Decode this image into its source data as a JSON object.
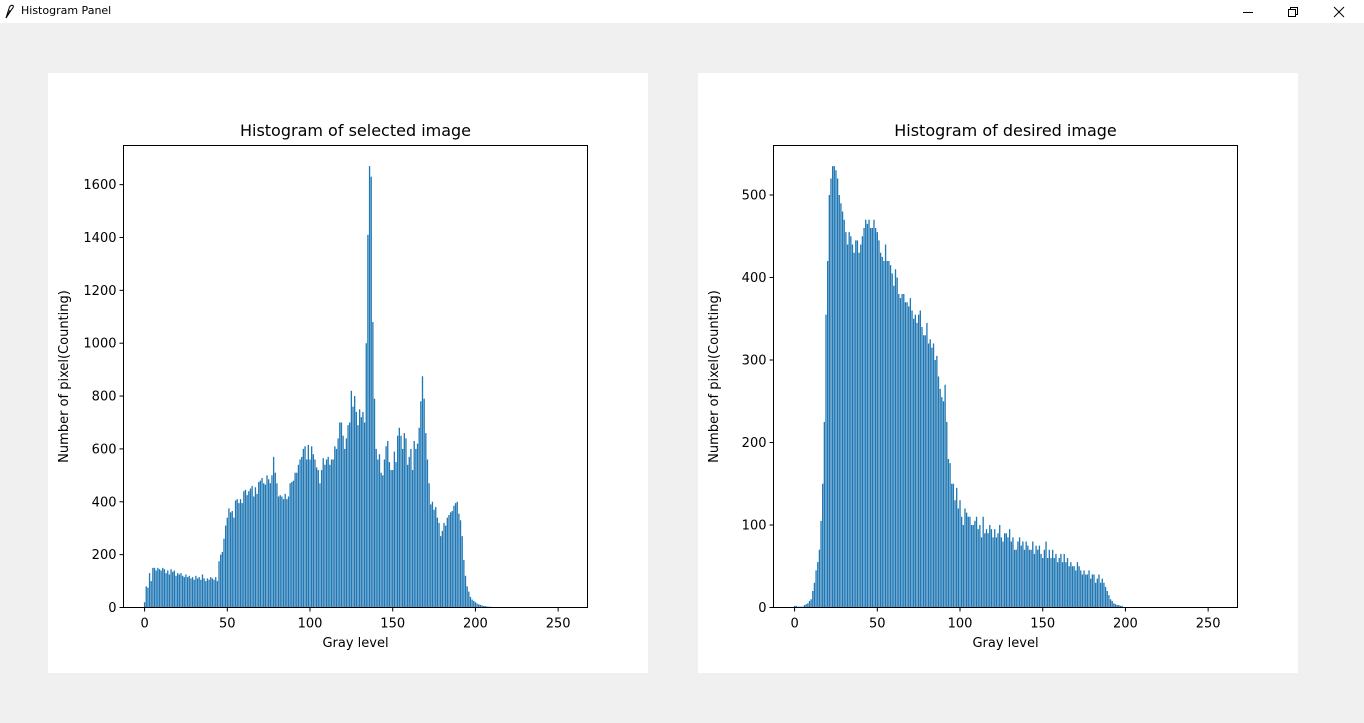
{
  "window": {
    "title": "Histogram Panel",
    "app_icon": "feather-icon",
    "minimize_icon": "minimize-icon",
    "maximize_icon": "restore-icon",
    "close_icon": "close-icon"
  },
  "chart_data": [
    {
      "type": "bar",
      "title": "Histogram of selected image",
      "xlabel": "Gray level",
      "ylabel": "Number of pixel(Counting)",
      "xlim": [
        -12.75,
        267.75
      ],
      "ylim": [
        0,
        1748
      ],
      "xticks": [
        0,
        50,
        100,
        150,
        200,
        250
      ],
      "yticks": [
        0,
        200,
        400,
        600,
        800,
        1000,
        1200,
        1400,
        1600
      ],
      "color": "#1f77b4",
      "x_start": 0,
      "values": [
        20,
        80,
        75,
        130,
        100,
        150,
        150,
        140,
        150,
        145,
        140,
        150,
        145,
        130,
        140,
        125,
        145,
        135,
        140,
        120,
        130,
        125,
        130,
        120,
        115,
        125,
        115,
        120,
        110,
        115,
        105,
        120,
        110,
        115,
        105,
        125,
        110,
        100,
        110,
        105,
        115,
        110,
        105,
        115,
        100,
        175,
        200,
        210,
        260,
        310,
        340,
        375,
        360,
        365,
        340,
        405,
        410,
        395,
        410,
        395,
        440,
        445,
        425,
        440,
        450,
        460,
        420,
        455,
        430,
        475,
        480,
        490,
        470,
        465,
        500,
        485,
        470,
        500,
        570,
        510,
        470,
        420,
        425,
        420,
        410,
        430,
        410,
        420,
        470,
        475,
        480,
        510,
        510,
        540,
        560,
        570,
        600,
        610,
        560,
        615,
        560,
        610,
        580,
        560,
        530,
        520,
        470,
        520,
        565,
        540,
        560,
        570,
        540,
        560,
        560,
        610,
        600,
        640,
        700,
        700,
        650,
        600,
        640,
        690,
        700,
        820,
        760,
        800,
        740,
        690,
        750,
        720,
        740,
        700,
        1000,
        1410,
        1670,
        1630,
        1080,
        790,
        600,
        560,
        580,
        510,
        500,
        560,
        610,
        630,
        550,
        520,
        520,
        590,
        550,
        650,
        680,
        650,
        600,
        660,
        640,
        540,
        570,
        600,
        520,
        630,
        600,
        620,
        680,
        780,
        875,
        790,
        660,
        560,
        470,
        390,
        400,
        370,
        380,
        340,
        320,
        270,
        290,
        320,
        310,
        340,
        350,
        360,
        365,
        385,
        395,
        400,
        355,
        330,
        270,
        180,
        120,
        80,
        60,
        40,
        30,
        25,
        20,
        15,
        12,
        10,
        8,
        6,
        5,
        4,
        3,
        3,
        2,
        2,
        1,
        1,
        1
      ]
    },
    {
      "type": "bar",
      "title": "Histogram of desired image",
      "xlabel": "Gray level",
      "ylabel": "Number of pixel(Counting)",
      "xlim": [
        -12.75,
        267.75
      ],
      "ylim": [
        0,
        560
      ],
      "xticks": [
        0,
        50,
        100,
        150,
        200,
        250
      ],
      "yticks": [
        0,
        100,
        200,
        300,
        400,
        500
      ],
      "color": "#1f77b4",
      "x_start": 0,
      "values": [
        2,
        2,
        1,
        1,
        1,
        1,
        3,
        4,
        5,
        8,
        10,
        20,
        30,
        45,
        55,
        70,
        105,
        150,
        225,
        355,
        420,
        500,
        520,
        535,
        535,
        530,
        520,
        500,
        490,
        480,
        470,
        455,
        440,
        455,
        450,
        440,
        430,
        445,
        445,
        430,
        440,
        450,
        460,
        470,
        465,
        470,
        460,
        460,
        470,
        460,
        455,
        445,
        430,
        425,
        420,
        440,
        420,
        420,
        415,
        405,
        390,
        410,
        400,
        380,
        375,
        380,
        380,
        370,
        370,
        365,
        375,
        360,
        350,
        355,
        345,
        355,
        360,
        340,
        330,
        330,
        345,
        320,
        325,
        315,
        320,
        300,
        305,
        280,
        265,
        255,
        250,
        270,
        225,
        180,
        175,
        150,
        150,
        130,
        145,
        120,
        130,
        110,
        100,
        120,
        115,
        110,
        110,
        100,
        100,
        105,
        110,
        95,
        100,
        85,
        110,
        90,
        95,
        90,
        100,
        95,
        85,
        95,
        85,
        90,
        100,
        85,
        80,
        90,
        90,
        85,
        95,
        80,
        85,
        70,
        70,
        80,
        85,
        75,
        80,
        70,
        80,
        75,
        70,
        70,
        80,
        65,
        75,
        70,
        75,
        65,
        60,
        70,
        80,
        60,
        70,
        60,
        70,
        60,
        65,
        55,
        60,
        65,
        55,
        65,
        55,
        60,
        50,
        55,
        50,
        50,
        45,
        55,
        50,
        45,
        40,
        45,
        40,
        40,
        45,
        35,
        40,
        40,
        30,
        35,
        40,
        30,
        35,
        30,
        25,
        20,
        15,
        10,
        8,
        5,
        4,
        3,
        3,
        2,
        2
      ]
    }
  ]
}
